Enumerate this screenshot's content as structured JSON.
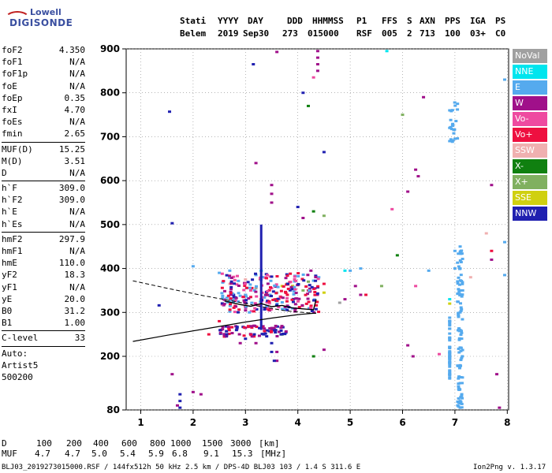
{
  "logo": {
    "line1": "Lowell",
    "line2": "DIGISONDE"
  },
  "header": {
    "cols": [
      {
        "label": "Stati",
        "value": "Belem"
      },
      {
        "label": "YYYY",
        "value": "2019"
      },
      {
        "label": "DAY",
        "value": "Sep30"
      },
      {
        "label": "DDD",
        "value": "273"
      },
      {
        "label": "HHMMSS",
        "value": "015000"
      },
      {
        "label": "P1",
        "value": "RSF"
      },
      {
        "label": "FFS",
        "value": "005"
      },
      {
        "label": "S",
        "value": "2"
      },
      {
        "label": "AXN",
        "value": "713"
      },
      {
        "label": "PPS",
        "value": "100"
      },
      {
        "label": "IGA",
        "value": "03+"
      },
      {
        "label": "PS",
        "value": "C0"
      }
    ]
  },
  "params": [
    [
      {
        "k": "foF2",
        "v": "4.350"
      },
      {
        "k": "foF1",
        "v": "N/A"
      },
      {
        "k": "foF1p",
        "v": "N/A"
      },
      {
        "k": "foE",
        "v": "N/A"
      },
      {
        "k": "foEp",
        "v": "0.35"
      },
      {
        "k": "fxI",
        "v": "4.70"
      },
      {
        "k": "foEs",
        "v": "N/A"
      },
      {
        "k": "fmin",
        "v": "2.65"
      }
    ],
    [
      {
        "k": "MUF(D)",
        "v": "15.25"
      },
      {
        "k": "M(D)",
        "v": "3.51"
      },
      {
        "k": "D",
        "v": "N/A"
      }
    ],
    [
      {
        "k": "h`F",
        "v": "309.0"
      },
      {
        "k": "h`F2",
        "v": "309.0"
      },
      {
        "k": "h`E",
        "v": "N/A"
      },
      {
        "k": "h`Es",
        "v": "N/A"
      }
    ],
    [
      {
        "k": "hmF2",
        "v": "297.9"
      },
      {
        "k": "hmF1",
        "v": "N/A"
      },
      {
        "k": "hmE",
        "v": "110.0"
      },
      {
        "k": "yF2",
        "v": "18.3"
      },
      {
        "k": "yF1",
        "v": "N/A"
      },
      {
        "k": "yE",
        "v": "20.0"
      },
      {
        "k": "B0",
        "v": "31.2"
      },
      {
        "k": "B1",
        "v": "1.00"
      }
    ],
    [
      {
        "k": "C-level",
        "v": "33"
      }
    ]
  ],
  "auto": [
    "Auto:",
    "Artist5",
    "500200"
  ],
  "legend": [
    {
      "label": "NoVal",
      "color": "#a0a0a0"
    },
    {
      "label": "NNE",
      "color": "#00e5ee"
    },
    {
      "label": "E",
      "color": "#55aaee"
    },
    {
      "label": "W",
      "color": "#a0108a"
    },
    {
      "label": "Vo-",
      "color": "#ee4aa0"
    },
    {
      "label": "Vo+",
      "color": "#ee1040"
    },
    {
      "label": "SSW",
      "color": "#f0b0b0"
    },
    {
      "label": "X-",
      "color": "#108010"
    },
    {
      "label": "X+",
      "color": "#80b060"
    },
    {
      "label": "SSE",
      "color": "#d0d010"
    },
    {
      "label": "NNW",
      "color": "#2020b0"
    }
  ],
  "footer": {
    "d_label": "D",
    "d_values": [
      "100",
      "200",
      "400",
      "600",
      "800",
      "1000",
      "1500",
      "3000",
      "[km]"
    ],
    "muf_label": "MUF",
    "muf_values": [
      "4.7",
      "4.7",
      "5.0",
      "5.4",
      "5.9",
      "6.8",
      "9.1",
      "15.3",
      "[MHz]"
    ]
  },
  "bottom_line": "BLJ03_2019273015000.RSF / 144fx512h 50 kHz 2.5 km / DPS-4D BLJ03 103 / 1.4 S 311.6 E",
  "version": "Ion2Png v. 1.3.17",
  "chart_data": {
    "type": "scatter",
    "x_ticks": [
      1,
      2,
      3,
      4,
      5,
      6,
      7,
      8
    ],
    "y_ticks": [
      80,
      200,
      300,
      400,
      500,
      600,
      700,
      800,
      900
    ],
    "xlim": [
      0.85,
      8.05
    ],
    "ylim_top": 905,
    "y_axis": "piecewise: 80 at bottom, 200-900 linear",
    "traces": {
      "lower_solid": [
        [
          0.85,
          234
        ],
        [
          1.5,
          248
        ],
        [
          2.2,
          262
        ],
        [
          3.0,
          278
        ],
        [
          3.5,
          287
        ],
        [
          4.0,
          295
        ],
        [
          4.3,
          298
        ],
        [
          4.35,
          298
        ]
      ],
      "dashed_profile": [
        [
          0.85,
          372
        ],
        [
          1.5,
          355
        ],
        [
          2.2,
          338
        ],
        [
          2.8,
          325
        ],
        [
          3.3,
          313
        ],
        [
          3.8,
          303
        ],
        [
          4.3,
          298
        ]
      ],
      "trace_curve": [
        [
          2.6,
          326
        ],
        [
          2.9,
          318
        ],
        [
          3.1,
          314
        ],
        [
          3.3,
          320
        ],
        [
          3.5,
          313
        ],
        [
          3.7,
          316
        ],
        [
          3.9,
          310
        ],
        [
          4.1,
          308
        ],
        [
          4.3,
          306
        ],
        [
          4.35,
          330
        ]
      ]
    },
    "spike": {
      "x": 3.3,
      "y_from": 260,
      "y_to": 500
    },
    "scatter_series": {
      "W": [
        [
          3.6,
          893
        ],
        [
          4.38,
          895
        ],
        [
          4.38,
          880
        ],
        [
          4.38,
          865
        ],
        [
          4.38,
          850
        ],
        [
          3.2,
          640
        ],
        [
          3.5,
          590
        ],
        [
          3.5,
          570
        ],
        [
          3.5,
          550
        ],
        [
          4.1,
          515
        ],
        [
          1.6,
          160
        ],
        [
          2.0,
          120
        ],
        [
          2.15,
          115
        ],
        [
          1.7,
          90
        ],
        [
          2.6,
          245
        ],
        [
          2.9,
          230
        ],
        [
          3.2,
          230
        ],
        [
          3.6,
          210
        ],
        [
          3.6,
          190
        ],
        [
          6.1,
          575
        ],
        [
          6.25,
          625
        ],
        [
          6.3,
          610
        ],
        [
          6.1,
          225
        ],
        [
          6.2,
          200
        ],
        [
          7.7,
          590
        ],
        [
          7.7,
          420
        ],
        [
          7.8,
          160
        ],
        [
          7.85,
          85
        ],
        [
          5.2,
          340
        ],
        [
          5.1,
          360
        ],
        [
          4.9,
          330
        ],
        [
          4.5,
          215
        ],
        [
          4.25,
          395
        ],
        [
          6.4,
          790
        ]
      ],
      "E": [
        [
          6.9,
          760
        ],
        [
          6.9,
          720
        ],
        [
          6.9,
          690
        ],
        [
          7.05,
          775
        ],
        [
          7.0,
          440
        ],
        [
          7.0,
          400
        ],
        [
          6.9,
          280
        ],
        [
          6.9,
          240
        ],
        [
          6.9,
          200
        ],
        [
          6.9,
          160
        ],
        [
          7.1,
          450
        ],
        [
          7.1,
          400
        ],
        [
          7.1,
          350
        ],
        [
          7.1,
          300
        ],
        [
          7.1,
          260
        ],
        [
          7.1,
          220
        ],
        [
          7.1,
          180
        ],
        [
          7.1,
          140
        ],
        [
          7.1,
          100
        ],
        [
          7.1,
          85
        ],
        [
          7.95,
          830
        ],
        [
          7.95,
          460
        ],
        [
          7.95,
          385
        ],
        [
          5.0,
          395
        ],
        [
          5.2,
          400
        ],
        [
          4.4,
          380
        ],
        [
          3.3,
          380
        ],
        [
          3.2,
          385
        ],
        [
          2.5,
          390
        ],
        [
          2.0,
          405
        ],
        [
          2.7,
          395
        ],
        [
          6.5,
          395
        ]
      ],
      "NNW": [
        [
          1.55,
          757
        ],
        [
          1.6,
          503
        ],
        [
          1.35,
          316
        ],
        [
          3.0,
          240
        ],
        [
          3.15,
          865
        ],
        [
          3.35,
          250
        ],
        [
          3.5,
          230
        ],
        [
          3.5,
          210
        ],
        [
          3.55,
          190
        ],
        [
          4.0,
          540
        ],
        [
          4.1,
          800
        ],
        [
          4.5,
          665
        ],
        [
          1.75,
          115
        ],
        [
          1.75,
          100
        ],
        [
          1.75,
          85
        ]
      ],
      "Vo+": [
        [
          3.0,
          340
        ],
        [
          3.1,
          335
        ],
        [
          3.3,
          330
        ],
        [
          3.4,
          345
        ],
        [
          3.6,
          330
        ],
        [
          3.8,
          340
        ],
        [
          4.2,
          350
        ],
        [
          4.5,
          365
        ],
        [
          5.3,
          340
        ],
        [
          7.7,
          440
        ],
        [
          2.3,
          250
        ],
        [
          2.5,
          280
        ]
      ],
      "Vo-": [
        [
          3.1,
          350
        ],
        [
          3.5,
          355
        ],
        [
          3.9,
          360
        ],
        [
          6.25,
          360
        ],
        [
          4.3,
          835
        ],
        [
          6.7,
          205
        ],
        [
          5.8,
          535
        ]
      ],
      "X-": [
        [
          3.8,
          365
        ],
        [
          4.2,
          770
        ],
        [
          4.3,
          530
        ],
        [
          5.9,
          430
        ],
        [
          3.7,
          250
        ],
        [
          4.3,
          200
        ]
      ],
      "X+": [
        [
          4.2,
          370
        ],
        [
          4.1,
          350
        ],
        [
          6.0,
          750
        ],
        [
          4.5,
          520
        ],
        [
          5.6,
          360
        ]
      ],
      "SSE": [
        [
          3.7,
          360
        ],
        [
          3.9,
          360
        ],
        [
          4.5,
          345
        ],
        [
          6.9,
          320
        ]
      ],
      "NoVal": [
        [
          3.2,
          355
        ],
        [
          3.6,
          345
        ],
        [
          4.0,
          362
        ],
        [
          4.8,
          322
        ]
      ],
      "SSW": [
        [
          3.0,
          375
        ],
        [
          2.7,
          365
        ],
        [
          7.6,
          480
        ],
        [
          7.3,
          380
        ]
      ],
      "NNE": [
        [
          5.7,
          895
        ],
        [
          3.3,
          395
        ],
        [
          4.9,
          395
        ],
        [
          6.9,
          330
        ]
      ]
    }
  }
}
